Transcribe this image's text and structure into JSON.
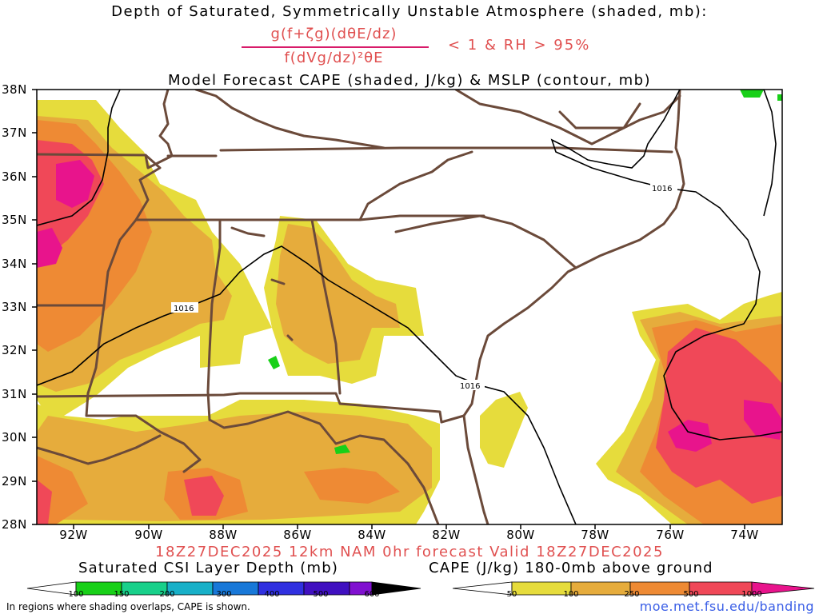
{
  "header": {
    "line1": "Depth of Saturated, Symmetrically Unstable Atmosphere (shaded, mb):",
    "numerator": "g(f+ζg)(dθE/dz)",
    "denominator": "f(dVg/dz)²θE",
    "condition": "< 1 & RH > 95%",
    "line3": "Model Forecast CAPE (shaded, J/kg) & MSLP (contour, mb)"
  },
  "map": {
    "lat_labels": [
      "38N",
      "37N",
      "36N",
      "35N",
      "34N",
      "33N",
      "32N",
      "31N",
      "30N",
      "29N",
      "28N"
    ],
    "lon_labels": [
      "92W",
      "90W",
      "88W",
      "86W",
      "84W",
      "82W",
      "80W",
      "78W",
      "76W",
      "74W"
    ],
    "isobar_labels": [
      "1016",
      "1016",
      "1016"
    ],
    "colors": {
      "cape_50": "#e6dc3c",
      "cape_100": "#e6ac3c",
      "cape_250": "#ee8a34",
      "cape_500": "#f04858",
      "cape_1000": "#e8148c",
      "csi": "#18d018",
      "border": "#6b4a3a"
    }
  },
  "footer": {
    "valid_line": "18Z27DEC2025 12km NAM 0hr forecast Valid 18Z27DEC2025",
    "csi_title": "Saturated CSI Layer Depth (mb)",
    "cape_title": "CAPE (J/kg) 180-0mb above ground",
    "csi_ticks": [
      "100",
      "150",
      "200",
      "300",
      "400",
      "500",
      "600"
    ],
    "cape_ticks": [
      "50",
      "100",
      "250",
      "500",
      "1000"
    ],
    "note": "In regions where shading overlaps, CAPE is shown.",
    "url": "moe.met.fsu.edu/banding"
  }
}
